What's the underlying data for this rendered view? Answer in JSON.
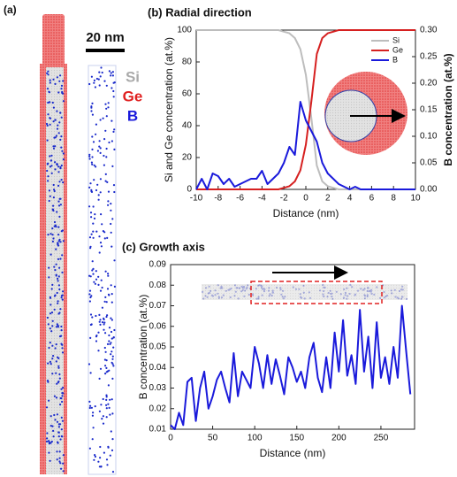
{
  "panel_a": {
    "label": "(a)",
    "scale_bar": "20 nm",
    "legend": [
      "Si",
      "Ge",
      "B"
    ]
  },
  "chart_data": [
    {
      "type": "line",
      "title": "(b) Radial direction",
      "x_label": "Distance (nm)",
      "y_label": "Si and Ge concentration (at.%)",
      "y2_label": "B concentration (at.%)",
      "xlim": [
        -10,
        10
      ],
      "xticks": [
        -10,
        -8,
        -6,
        -4,
        -2,
        0,
        2,
        4,
        6,
        8,
        10
      ],
      "ylim": [
        0,
        100
      ],
      "yticks": [
        0,
        20,
        40,
        60,
        80,
        100
      ],
      "y2lim": [
        0,
        0.3
      ],
      "y2ticks": [
        {
          "value": 0,
          "label": "0.00"
        },
        {
          "value": 0.05,
          "label": "0.05"
        },
        {
          "value": 0.1,
          "label": "0.10"
        },
        {
          "value": 0.15,
          "label": "0.15"
        },
        {
          "value": 0.2,
          "label": "0.20"
        },
        {
          "value": 0.25,
          "label": "0.25"
        },
        {
          "value": 0.3,
          "label": "0.30"
        }
      ],
      "legend": "upper right",
      "x": [
        -10,
        -9.5,
        -9,
        -8.5,
        -8,
        -7.5,
        -7,
        -6.5,
        -6,
        -5.5,
        -5,
        -4.5,
        -4,
        -3.5,
        -3,
        -2.5,
        -2,
        -1.5,
        -1,
        -0.5,
        0,
        0.5,
        1,
        1.5,
        2,
        2.5,
        3,
        3.5,
        4,
        4.5,
        5,
        5.5,
        6,
        6.5,
        7,
        7.5,
        8,
        8.5,
        9,
        9.5,
        10
      ],
      "series": [
        {
          "name": "Si",
          "color": "#bdbdbd",
          "values": [
            100,
            100,
            100,
            100,
            100,
            100,
            100,
            100,
            100,
            100,
            100,
            100,
            100,
            100,
            100,
            100,
            99,
            98,
            95,
            88,
            72,
            45,
            15,
            5,
            2,
            1,
            0,
            0,
            0,
            0,
            0,
            0,
            0,
            0,
            0,
            0,
            0,
            0,
            0,
            0,
            0
          ]
        },
        {
          "name": "Ge",
          "color": "#d62020",
          "values": [
            0,
            0,
            0,
            0,
            0,
            0,
            0,
            0,
            0,
            0,
            0,
            0,
            0,
            0,
            0,
            0,
            1,
            2,
            5,
            12,
            28,
            55,
            85,
            95,
            98,
            99,
            100,
            100,
            100,
            100,
            100,
            100,
            100,
            100,
            100,
            100,
            100,
            100,
            100,
            100,
            100
          ]
        },
        {
          "name": "B",
          "color": "#1a1adb",
          "axis": "y2",
          "values": [
            0,
            0.02,
            0,
            0.03,
            0.025,
            0.01,
            0.02,
            0.005,
            0.01,
            0.015,
            0.02,
            0.02,
            0.035,
            0.01,
            0.02,
            0.03,
            0.05,
            0.08,
            0.065,
            0.165,
            0.13,
            0.11,
            0.09,
            0.05,
            0.03,
            0.02,
            0.01,
            0.005,
            0,
            0.005,
            0,
            0,
            0,
            0,
            0,
            0,
            0,
            0,
            0,
            0,
            0
          ]
        }
      ]
    },
    {
      "type": "line",
      "title": "(c) Growth axis",
      "x_label": "Distance (nm)",
      "y_label": "B concentration (at.%)",
      "xlim": [
        0,
        290
      ],
      "xticks": [
        0,
        50,
        100,
        150,
        200,
        250
      ],
      "ylim": [
        0.01,
        0.09
      ],
      "yticks": [
        0.01,
        0.02,
        0.03,
        0.04,
        0.05,
        0.06,
        0.07,
        0.08,
        0.09
      ],
      "color": "#1a1adb",
      "x": [
        0,
        5,
        10,
        15,
        20,
        25,
        30,
        35,
        40,
        45,
        50,
        55,
        60,
        65,
        70,
        75,
        80,
        85,
        90,
        95,
        100,
        105,
        110,
        115,
        120,
        125,
        130,
        135,
        140,
        145,
        150,
        155,
        160,
        165,
        170,
        175,
        180,
        185,
        190,
        195,
        200,
        205,
        210,
        215,
        220,
        225,
        230,
        235,
        240,
        245,
        250,
        255,
        260,
        265,
        270,
        275,
        280,
        285
      ],
      "values": [
        0.012,
        0.01,
        0.018,
        0.012,
        0.033,
        0.035,
        0.014,
        0.03,
        0.038,
        0.02,
        0.026,
        0.034,
        0.038,
        0.03,
        0.023,
        0.047,
        0.026,
        0.038,
        0.034,
        0.03,
        0.05,
        0.042,
        0.03,
        0.046,
        0.032,
        0.044,
        0.036,
        0.027,
        0.045,
        0.04,
        0.033,
        0.038,
        0.03,
        0.045,
        0.052,
        0.035,
        0.028,
        0.045,
        0.03,
        0.057,
        0.038,
        0.063,
        0.036,
        0.046,
        0.032,
        0.068,
        0.038,
        0.055,
        0.03,
        0.062,
        0.035,
        0.045,
        0.032,
        0.05,
        0.035,
        0.07,
        0.048,
        0.027
      ]
    }
  ]
}
